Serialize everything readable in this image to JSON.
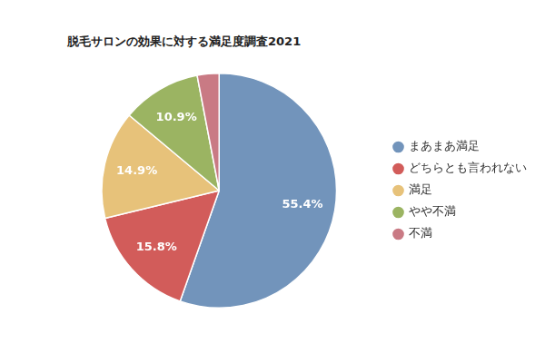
{
  "chart_data": {
    "type": "pie",
    "title": "脱毛サロンの効果に対する満足度調査2021",
    "categories": [
      "まあまあ満足",
      "どちらとも言われない",
      "満足",
      "やや不満",
      "不満"
    ],
    "values": [
      55.4,
      15.8,
      14.9,
      10.9,
      3.0
    ],
    "value_labels": [
      "55.4%",
      "15.8%",
      "14.9%",
      "10.9%",
      null
    ],
    "colors": [
      "#7294bb",
      "#d25c5a",
      "#e7c27a",
      "#9bb462",
      "#c97a84"
    ],
    "data_labels": true,
    "legend": "right"
  }
}
